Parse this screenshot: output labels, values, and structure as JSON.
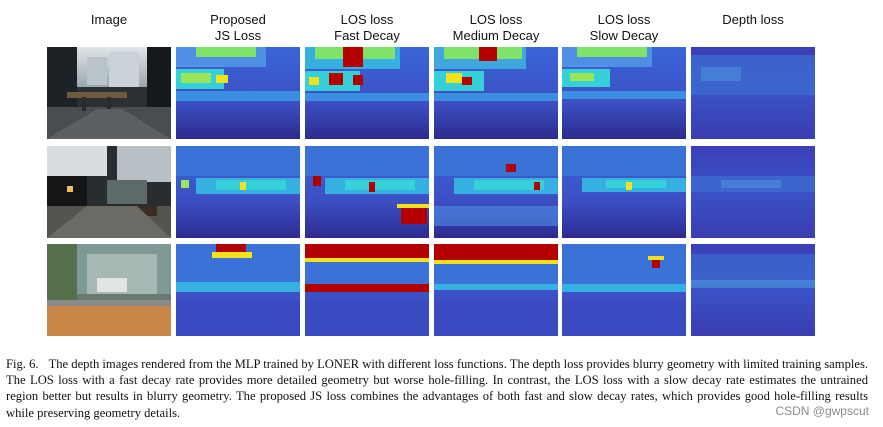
{
  "columns": [
    {
      "line1": "Image",
      "line2": ""
    },
    {
      "line1": "Proposed",
      "line2": "JS Loss"
    },
    {
      "line1": "LOS loss",
      "line2": "Fast Decay"
    },
    {
      "line1": "LOS loss",
      "line2": "Medium Decay"
    },
    {
      "line1": "LOS loss",
      "line2": "Slow Decay"
    },
    {
      "line1": "Depth loss",
      "line2": ""
    }
  ],
  "rows": 3,
  "colors": {
    "depth_dark": "#2b2a8c",
    "depth_mid": "#3b5fd4",
    "depth_cyan": "#35d0d8",
    "depth_green": "#7fe36a",
    "depth_yellow": "#f2e21b",
    "depth_red": "#b30000"
  },
  "caption": {
    "label": "Fig. 6.",
    "text": "The depth images rendered from the MLP trained by LONER with different loss functions. The depth loss provides blurry geometry with limited training samples. The LOS loss with a fast decay rate provides more detailed geometry but worse hole-filling. In contrast, the LOS loss with a slow decay rate estimates the untrained region better but results in blurry geometry. The proposed JS loss combines the advantages of both fast and slow decay rates, which provides good hole-filling results while preserving geometry details."
  },
  "watermark": "CSDN @gwpscut"
}
